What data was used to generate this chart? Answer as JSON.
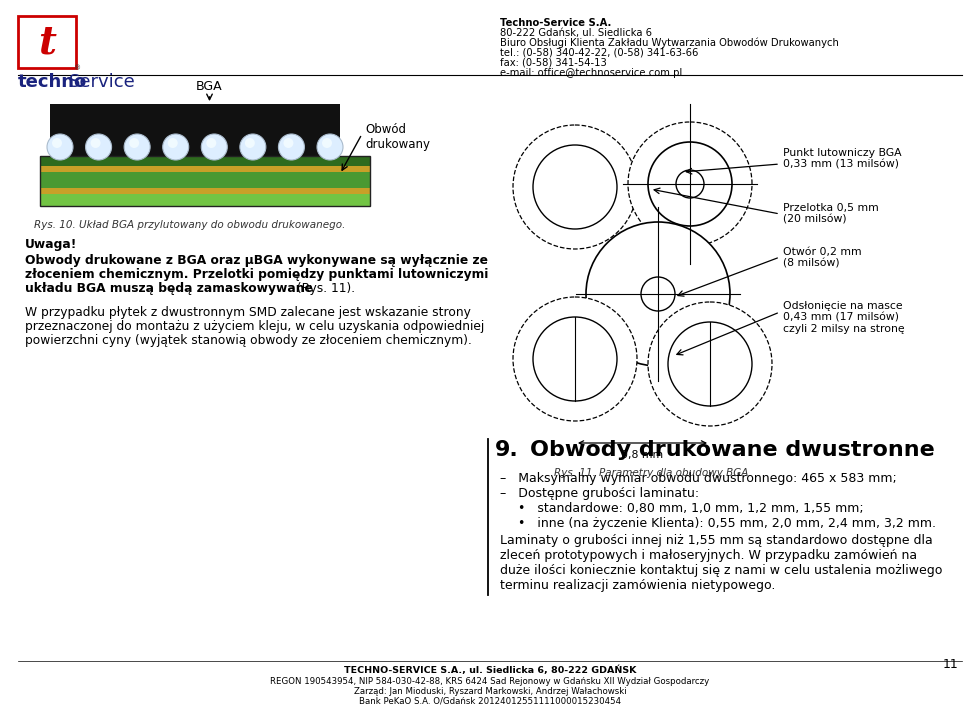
{
  "page_width": 9.6,
  "page_height": 6.93,
  "bg_color": "#ffffff",
  "header_company": "Techno-Service S.A.",
  "header_address": "80-222 Gdańsk, ul. Siedlicka 6",
  "header_biuro": "Biuro Obsługi Klienta Zakładu Wytwarzania Obwodów Drukowanych",
  "header_tel": "tel.: (0-58) 340-42-22, (0-58) 341-63-66",
  "header_fax": "fax: (0-58) 341-54-13",
  "header_email": "e-mail: office@technoservice.com.pl",
  "section_title_num": "9.",
  "section_title_text": "Obwody drukowane dwustronne",
  "caption_10": "Rys. 10. Układ BGA przylutowany do obwodu drukowanego.",
  "caption_11": "Rys. 11. Parametry dla obudowy BGA.",
  "uwaga_title": "Uwaga!",
  "uwaga_bold": "Obwody drukowane z BGA oraz μBGA wykonywane są wyłącznie ze złoceniem chemicznym. Przelotki pomiędzy punktami lutowniczymi układu BGA muszą będą zamaskowywane",
  "uwaga_normal": " (Rys. 11).",
  "paragraph": "W przypadku płytek z dwustronnym SMD zalecane jest wskazanie strony przeznaczonej do montażu z użyciem kleju, w celu uzyskania odpowiedniej powierzchni cyny (wyjątek stanowią obwody ze złoceniem chemicznym).",
  "bullet1": "–   Maksymalny wymiar obwodu dwustronnego: 465 x 583 mm;",
  "bullet2": "–   Dostępne grubości laminatu:",
  "bullet3": "•   standardowe: 0,80 mm, 1,0 mm, 1,2 mm, 1,55 mm;",
  "bullet4": "•   inne (na życzenie Klienta): 0,55 mm, 2,0 mm, 2,4 mm, 3,2 mm.",
  "para2_1": "Laminaty o grubości innej niż 1,55 mm są standardowo dostępne dla",
  "para2_2": "zleceń prototypowych i małoseryjnych. W przypadku zamówień na",
  "para2_3": "duże ilości koniecznie kontaktuj się z nami w celu ustalenia możliwego",
  "para2_4": "terminu realizacji zamówienia nietypowego.",
  "footer1": "TECHNO-SERVICE S.A., ul. Siedlicka 6, 80-222 GDAŃSK",
  "footer2": "REGON 190543954, NIP 584-030-42-88, KRS 6424 Sad Rejonowy w Gdańsku XII Wydział Gospodarczy",
  "footer3": "Zarząd: Jan Mioduski, Ryszard Markowski, Andrzej Wałachowski",
  "footer4": "Bank PeKaO S.A. O/Gdańsk 20124012551111000015230454",
  "page_num": "11",
  "bga_label": "BGA",
  "obwod_label": "Obwód\ndrukowany",
  "ann1_text": "Punkt lutowniczy BGA\n0,33 mm (13 milsów)",
  "ann2_text": "Przelotka 0,5 mm\n(20 milsów)",
  "ann3_text": "Otwór 0,2 mm\n(8 milsów)",
  "ann4_text": "Odsłonięcie na masce\n0,43 mm (17 milsów)\nczyli 2 milsy na stronę",
  "ann5_text": "0,8 mm",
  "dark_color": "#111111",
  "blue_color": "#1a237e",
  "red_color": "#cc0000",
  "green_dark": "#2e6b1e",
  "green_mid": "#4a9932",
  "green_light": "#72c444",
  "tan_color": "#c8a028",
  "black_color": "#000000",
  "gray_color": "#444444"
}
